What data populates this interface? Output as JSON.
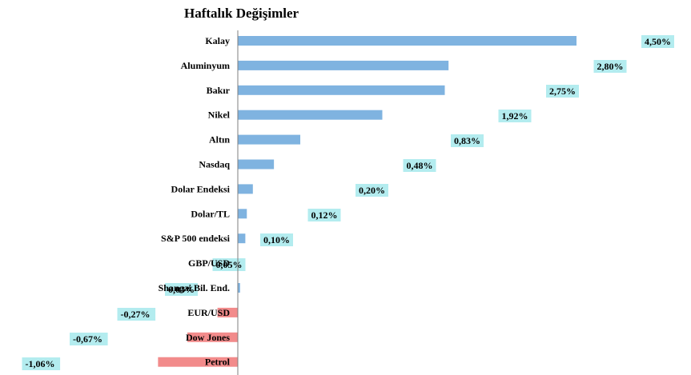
{
  "chart_data": {
    "type": "bar",
    "orientation": "horizontal",
    "title": "Haftalık Değişimler",
    "categories": [
      "Kalay",
      "Aluminyum",
      "Bakır",
      "Nikel",
      "Altın",
      "Nasdaq",
      "Dolar Endeksi",
      "Dolar/TL",
      "S&P 500 endeksi",
      "GBP/USD",
      "Shangai Bil. End.",
      "EUR/USD",
      "Dow Jones",
      "Petrol"
    ],
    "values": [
      4.5,
      2.8,
      2.75,
      1.92,
      0.83,
      0.48,
      0.2,
      0.12,
      0.1,
      0.05,
      0.03,
      -0.27,
      -0.67,
      -1.06
    ],
    "value_labels": [
      "4,50%",
      "2,80%",
      "2,75%",
      "1,92%",
      "0,83%",
      "0,48%",
      "0,20%",
      "0,12%",
      "0,10%",
      "0,05%",
      "0,03%",
      "-0,27%",
      "-0,67%",
      "-1,06%"
    ],
    "colors": {
      "positive": "#7fb3e0",
      "negative": "#f28b8b",
      "label_bg": "#b3ecef",
      "axis": "#7f7f7f"
    },
    "legend": "none",
    "grid": false
  }
}
